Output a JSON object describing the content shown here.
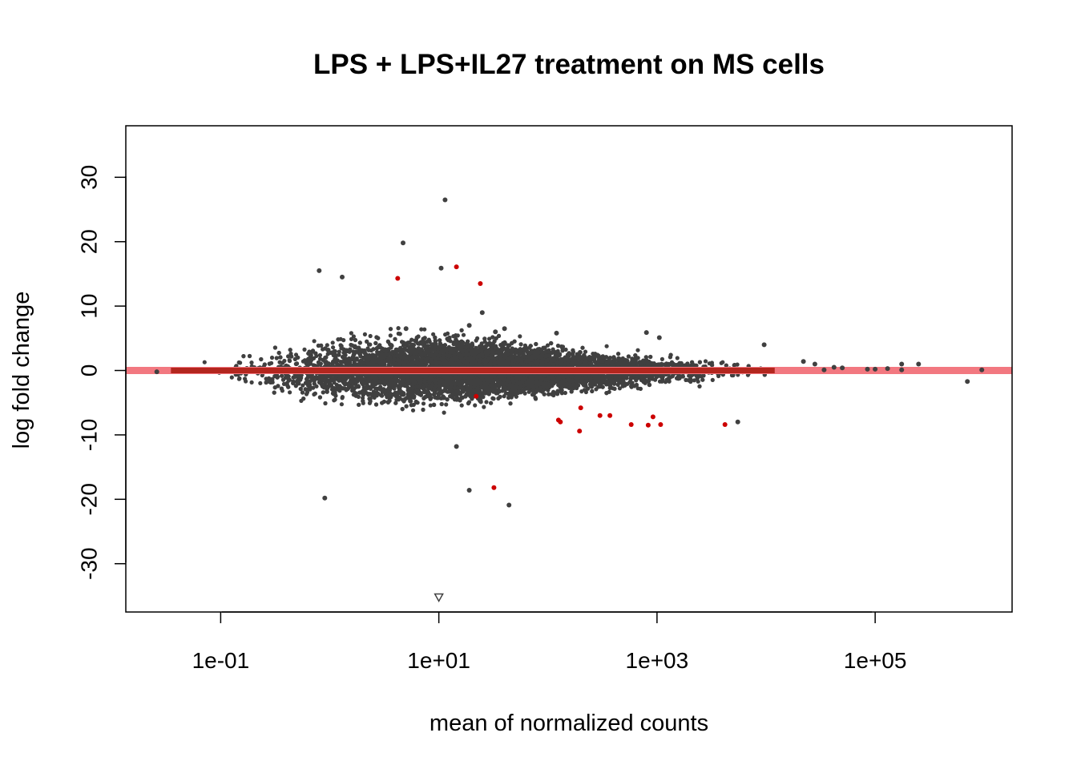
{
  "chart_data": {
    "type": "scatter",
    "title": "LPS + LPS+IL27 treatment on MS cells",
    "xlabel": "mean of normalized counts",
    "ylabel": "log fold change",
    "x_scale": "log10",
    "xlim": [
      0.0135,
      1800000
    ],
    "ylim": [
      -37.5,
      38
    ],
    "x_ticks": [
      {
        "value": 0.1,
        "label": "1e-01"
      },
      {
        "value": 10,
        "label": "1e+01"
      },
      {
        "value": 1000,
        "label": "1e+03"
      },
      {
        "value": 100000,
        "label": "1e+05"
      }
    ],
    "y_ticks": [
      {
        "value": -30,
        "label": "-30"
      },
      {
        "value": -20,
        "label": "-20"
      },
      {
        "value": -10,
        "label": "-10"
      },
      {
        "value": 0,
        "label": "0"
      },
      {
        "value": 10,
        "label": "10"
      },
      {
        "value": 20,
        "label": "20"
      },
      {
        "value": 30,
        "label": "30"
      }
    ],
    "grid": false,
    "legend": "none",
    "colors": {
      "not_significant": "#404040",
      "significant": "#cc0000",
      "zero_line": "#f27880",
      "zero_line_center": "#b3261e"
    },
    "reference_line": {
      "y": 0
    },
    "dense_cloud": {
      "description_note": "",
      "x_range": [
        0.03,
        50000
      ],
      "y_spread_by_x": [
        {
          "x": 0.04,
          "spread": 1.2
        },
        {
          "x": 0.1,
          "spread": 2.5
        },
        {
          "x": 1,
          "spread": 4.5
        },
        {
          "x": 10,
          "spread": 5.5
        },
        {
          "x": 100,
          "spread": 3.5
        },
        {
          "x": 1000,
          "spread": 2.2
        },
        {
          "x": 10000,
          "spread": 1.2
        },
        {
          "x": 50000,
          "spread": 0.8
        }
      ]
    },
    "series": [
      {
        "name": "",
        "color": "#404040",
        "points": [
          {
            "x": 0.026,
            "y": -0.2
          },
          {
            "x": 0.8,
            "y": 15.5
          },
          {
            "x": 1.3,
            "y": 14.5
          },
          {
            "x": 4.7,
            "y": 19.8
          },
          {
            "x": 11.4,
            "y": 26.5
          },
          {
            "x": 10.5,
            "y": 15.9
          },
          {
            "x": 0.9,
            "y": -19.8
          },
          {
            "x": 14.5,
            "y": -11.8
          },
          {
            "x": 19.0,
            "y": -18.6
          },
          {
            "x": 44.0,
            "y": -20.9
          },
          {
            "x": 25.0,
            "y": 9.0
          },
          {
            "x": 19.0,
            "y": 7.0
          },
          {
            "x": 5.0,
            "y": 6.5
          },
          {
            "x": 40.0,
            "y": 6.5
          },
          {
            "x": 33.0,
            "y": 6.0
          },
          {
            "x": 120.0,
            "y": 5.8
          },
          {
            "x": 800.0,
            "y": 5.9
          },
          {
            "x": 1050.0,
            "y": 5.1
          },
          {
            "x": 9600.0,
            "y": 4.0
          },
          {
            "x": 5500.0,
            "y": -8.0
          },
          {
            "x": 22000.0,
            "y": 1.4
          },
          {
            "x": 28000.0,
            "y": 1.0
          },
          {
            "x": 34000.0,
            "y": 0.1
          },
          {
            "x": 42000.0,
            "y": 0.5
          },
          {
            "x": 50000.0,
            "y": 0.4
          },
          {
            "x": 85000.0,
            "y": 0.2
          },
          {
            "x": 100000.0,
            "y": 0.2
          },
          {
            "x": 130000.0,
            "y": 0.3
          },
          {
            "x": 175000.0,
            "y": 1.0
          },
          {
            "x": 175000.0,
            "y": 0.1
          },
          {
            "x": 250000.0,
            "y": 1.0
          },
          {
            "x": 700000.0,
            "y": -1.7
          },
          {
            "x": 950000.0,
            "y": 0.1
          }
        ]
      },
      {
        "name": "",
        "color": "#cc0000",
        "points": [
          {
            "x": 4.2,
            "y": 14.3
          },
          {
            "x": 14.5,
            "y": 16.1
          },
          {
            "x": 24.0,
            "y": 13.5
          },
          {
            "x": 32.0,
            "y": -18.2
          },
          {
            "x": 22.0,
            "y": -4.0
          },
          {
            "x": 125.0,
            "y": -7.7
          },
          {
            "x": 130.0,
            "y": -8.0
          },
          {
            "x": 195.0,
            "y": -9.4
          },
          {
            "x": 200.0,
            "y": -5.8
          },
          {
            "x": 300.0,
            "y": -7.0
          },
          {
            "x": 370.0,
            "y": -7.0
          },
          {
            "x": 580.0,
            "y": -8.4
          },
          {
            "x": 830.0,
            "y": -8.5
          },
          {
            "x": 920.0,
            "y": -7.2
          },
          {
            "x": 1080.0,
            "y": -8.4
          },
          {
            "x": 4200.0,
            "y": -8.4
          }
        ]
      }
    ],
    "clipped_markers": [
      {
        "x": 10.0,
        "y": -35.2,
        "shape": "down-triangle"
      }
    ]
  }
}
